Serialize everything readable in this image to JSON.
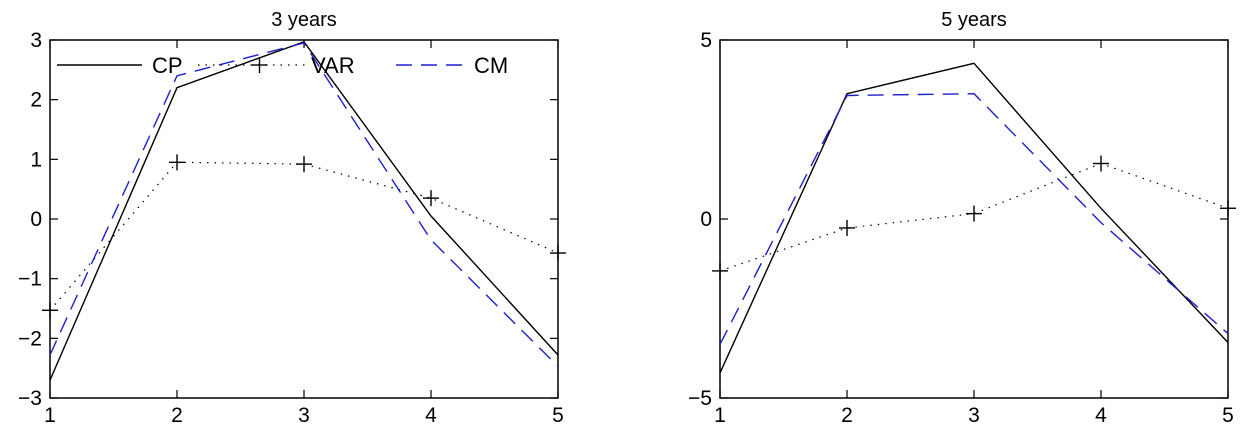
{
  "chart_data": [
    {
      "type": "line",
      "title": "3 years",
      "xlabel": "",
      "ylabel": "",
      "x": [
        1,
        2,
        3,
        4,
        5
      ],
      "xlim": [
        1,
        5
      ],
      "ylim": [
        -3,
        3
      ],
      "xticks": [
        1,
        2,
        3,
        4,
        5
      ],
      "yticks": [
        3,
        2,
        1,
        0,
        -1,
        -2,
        -3
      ],
      "ytick_labels": [
        "3",
        "2",
        "1",
        "0",
        "−1",
        "−2",
        "−3"
      ],
      "grid": false,
      "legend": "top, horizontal, inside axes",
      "series": [
        {
          "name": "CP",
          "values": [
            -2.7,
            2.2,
            2.97,
            0.05,
            -2.28
          ],
          "color": "#000000",
          "style": "solid",
          "marker": "none"
        },
        {
          "name": "VAR",
          "values": [
            -1.53,
            0.95,
            0.92,
            0.35,
            -0.57
          ],
          "color": "#000000",
          "style": "dotted",
          "marker": "plus"
        },
        {
          "name": "CM",
          "values": [
            -2.28,
            2.4,
            2.95,
            -0.35,
            -2.47
          ],
          "color": "#1f1fcc",
          "style": "dashed",
          "marker": "none"
        }
      ]
    },
    {
      "type": "line",
      "title": "5 years",
      "xlabel": "",
      "ylabel": "",
      "x": [
        1,
        2,
        3,
        4,
        5
      ],
      "xlim": [
        1,
        5
      ],
      "ylim": [
        -5,
        5
      ],
      "xticks": [
        1,
        2,
        3,
        4,
        5
      ],
      "yticks": [
        5,
        0,
        -5
      ],
      "ytick_labels": [
        "5",
        "0",
        "−5"
      ],
      "grid": false,
      "legend": "none",
      "series": [
        {
          "values": [
            -4.3,
            3.5,
            4.35,
            0.3,
            -3.45
          ],
          "color": "#000000",
          "style": "solid",
          "marker": "none"
        },
        {
          "values": [
            -1.45,
            -0.25,
            0.15,
            1.55,
            0.3
          ],
          "color": "#000000",
          "style": "dotted",
          "marker": "plus"
        },
        {
          "values": [
            -3.5,
            3.45,
            3.5,
            -0.1,
            -3.2
          ],
          "color": "#1f1fcc",
          "style": "dashed",
          "marker": "none"
        }
      ]
    }
  ]
}
